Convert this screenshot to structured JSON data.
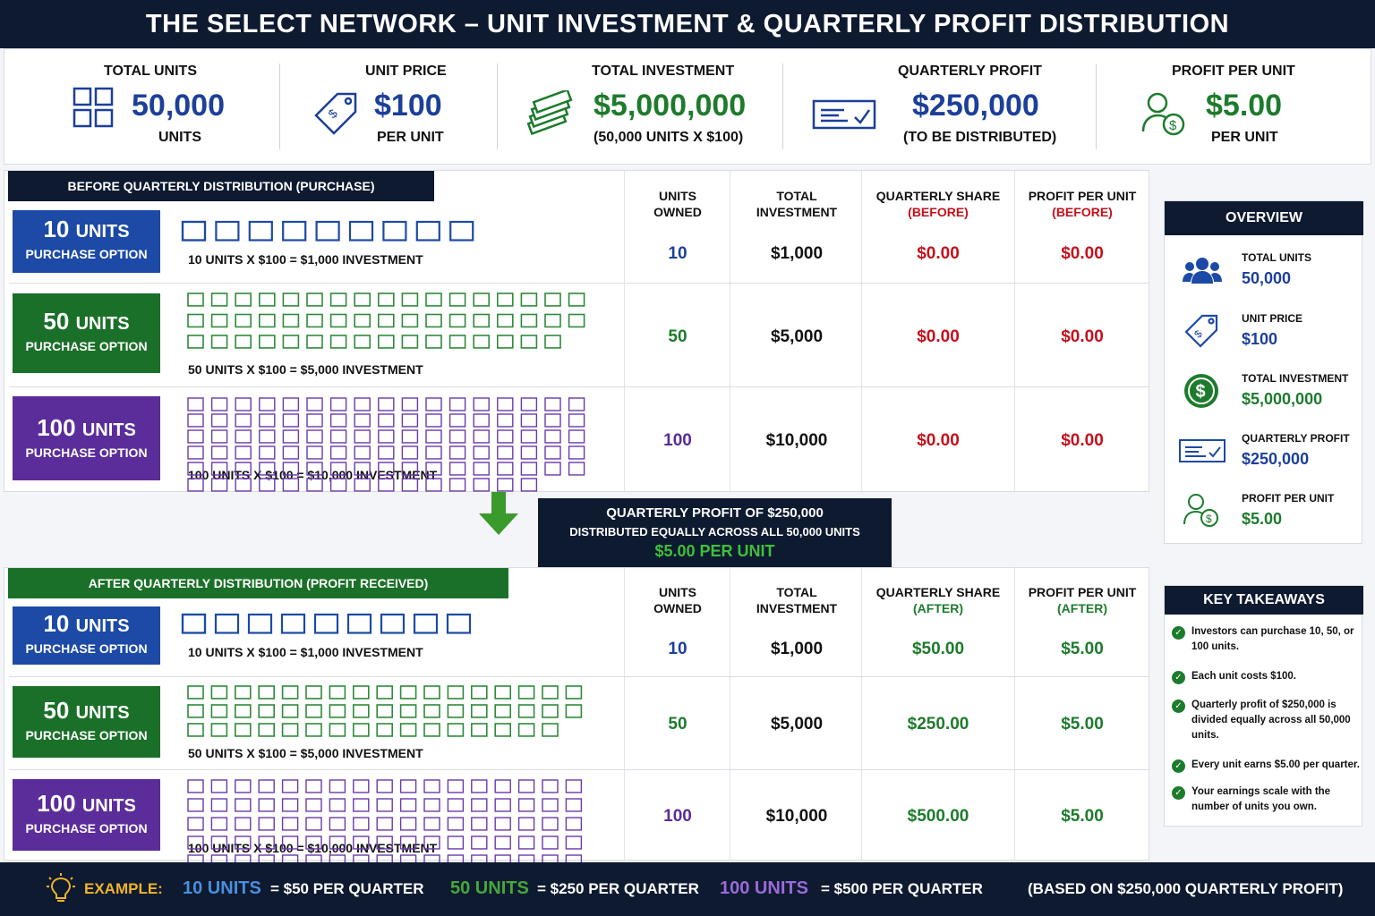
{
  "title": "THE SELECT NETWORK  –  UNIT INVESTMENT & QUARTERLY PROFIT DISTRIBUTION",
  "stats": [
    {
      "label": "TOTAL UNITS",
      "value": "50,000",
      "sub": "UNITS",
      "icon": "grid-icon"
    },
    {
      "label": "UNIT PRICE",
      "value": "$100",
      "sub": "PER UNIT",
      "icon": "price-tag-icon"
    },
    {
      "label": "TOTAL INVESTMENT",
      "value": "$5,000,000",
      "sub": "(50,000 UNITS X $100)",
      "icon": "money-stack-icon"
    },
    {
      "label": "QUARTERLY PROFIT",
      "value": "$250,000",
      "sub": "(TO BE DISTRIBUTED)",
      "icon": "check-icon"
    },
    {
      "label": "PROFIT PER UNIT",
      "value": "$5.00",
      "sub": "PER UNIT",
      "icon": "person-dollar-icon"
    }
  ],
  "before": {
    "tag": "BEFORE QUARTERLY DISTRIBUTION (PURCHASE)",
    "headers": {
      "units": "UNITS OWNED",
      "investment": "TOTAL INVESTMENT",
      "share": "QUARTERLY SHARE",
      "share_note": "(BEFORE)",
      "ppu": "PROFIT PER UNIT",
      "ppu_note": "(BEFORE)"
    },
    "rows": [
      {
        "units_num": "10",
        "units_word": "UNITS",
        "option": "PURCHASE OPTION",
        "formula": "10  UNITS X $100  =  $1,000 INVESTMENT",
        "owned": "10",
        "investment": "$1,000",
        "share": "$0.00",
        "ppu": "$0.00"
      },
      {
        "units_num": "50",
        "units_word": "UNITS",
        "option": "PURCHASE OPTION",
        "formula": "50  UNITS X $100  =  $5,000 INVESTMENT",
        "owned": "50",
        "investment": "$5,000",
        "share": "$0.00",
        "ppu": "$0.00"
      },
      {
        "units_num": "100",
        "units_word": "UNITS",
        "option": "PURCHASE OPTION",
        "formula": "100  UNITS X $100  =  $10,000 INVESTMENT",
        "owned": "100",
        "investment": "$10,000",
        "share": "$0.00",
        "ppu": "$0.00"
      }
    ]
  },
  "center": {
    "line1": "QUARTERLY PROFIT OF $250,000",
    "line2": "DISTRIBUTED EQUALLY ACROSS ALL 50,000 UNITS",
    "line3": "$5.00 PER UNIT"
  },
  "after": {
    "tag": "AFTER QUARTERLY DISTRIBUTION (PROFIT RECEIVED)",
    "headers": {
      "units": "UNITS OWNED",
      "investment": "TOTAL INVESTMENT",
      "share": "QUARTERLY SHARE",
      "share_note": "(AFTER)",
      "ppu": "PROFIT PER UNIT",
      "ppu_note": "(AFTER)"
    },
    "rows": [
      {
        "units_num": "10",
        "units_word": "UNITS",
        "option": "PURCHASE OPTION",
        "formula": "10  UNITS X $100  =  $1,000 INVESTMENT",
        "owned": "10",
        "investment": "$1,000",
        "share": "$50.00",
        "ppu": "$5.00"
      },
      {
        "units_num": "50",
        "units_word": "UNITS",
        "option": "PURCHASE OPTION",
        "formula": "50  UNITS X $100  =  $5,000 INVESTMENT",
        "owned": "50",
        "investment": "$5,000",
        "share": "$250.00",
        "ppu": "$5.00"
      },
      {
        "units_num": "100",
        "units_word": "UNITS",
        "option": "PURCHASE OPTION",
        "formula": "100  UNITS X $100  =  $10,000 INVESTMENT",
        "owned": "100",
        "investment": "$10,000",
        "share": "$500.00",
        "ppu": "$5.00"
      }
    ]
  },
  "overview": {
    "title": "OVERVIEW",
    "items": [
      {
        "label": "TOTAL UNITS",
        "value": "50,000",
        "icon": "people-icon"
      },
      {
        "label": "UNIT PRICE",
        "value": "$100",
        "icon": "price-tag-icon"
      },
      {
        "label": "TOTAL INVESTMENT",
        "value": "$5,000,000",
        "icon": "dollar-circle-icon"
      },
      {
        "label": "QUARTERLY PROFIT",
        "value": "$250,000",
        "icon": "check-icon"
      },
      {
        "label": "PROFIT PER UNIT",
        "value": "$5.00",
        "icon": "person-dollar-icon"
      }
    ]
  },
  "key_takeaways": {
    "title": "KEY TAKEAWAYS",
    "items": [
      "Investors can purchase 10, 50, or 100 units.",
      "Each unit costs $100.",
      "Quarterly profit of $250,000 is divided equally across all 50,000 units.",
      "Every unit earns $5.00 per quarter.",
      "Your earnings scale with the number of units you own."
    ]
  },
  "footer": {
    "example": "EXAMPLE:",
    "e1_units": "10 UNITS",
    "e1_text": "= $50 PER QUARTER",
    "e2_units": "50 UNITS",
    "e2_text": "= $250 PER QUARTER",
    "e3_units": "100 UNITS",
    "e3_text": "= $500 PER QUARTER",
    "note": "(BASED ON $250,000 QUARTERLY PROFIT)"
  },
  "colors": {
    "navy": "#0e1a30",
    "blue": "#1c4aa6",
    "green": "#1b7029",
    "purple": "#5b2d9a",
    "red": "#c4101c"
  }
}
